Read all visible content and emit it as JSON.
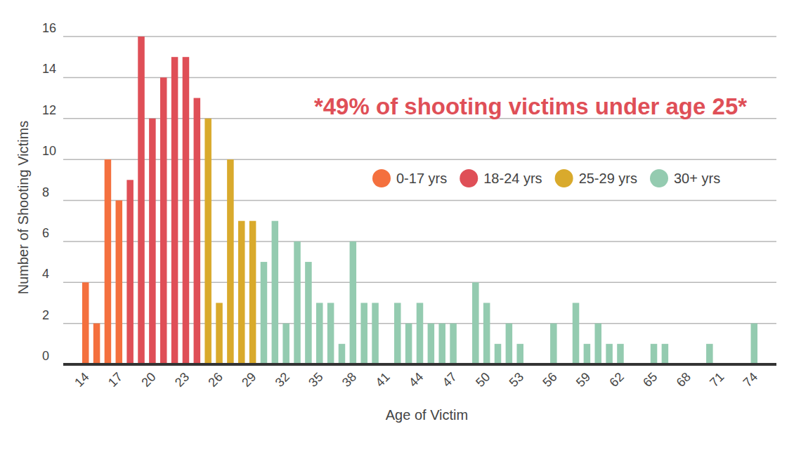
{
  "chart_data": {
    "type": "bar",
    "annotation": "*49% of shooting victims under age 25*",
    "x_label": "Age of Victim",
    "y_label": "Number of Shooting Victims",
    "x": [
      14,
      15,
      16,
      17,
      18,
      19,
      20,
      21,
      22,
      23,
      24,
      25,
      26,
      27,
      28,
      29,
      30,
      31,
      32,
      33,
      34,
      35,
      36,
      37,
      38,
      39,
      40,
      41,
      42,
      43,
      44,
      45,
      46,
      47,
      48,
      49,
      50,
      51,
      52,
      53,
      54,
      55,
      56,
      57,
      58,
      59,
      60,
      61,
      62,
      63,
      64,
      65,
      66,
      67,
      68,
      69,
      70,
      71,
      72,
      73,
      74
    ],
    "series": [
      {
        "name": "0-17 yrs",
        "color": "#f4703e",
        "values": [
          4,
          2,
          10,
          8,
          null,
          null,
          null,
          null,
          null,
          null,
          null,
          null,
          null,
          null,
          null,
          null,
          null,
          null,
          null,
          null,
          null,
          null,
          null,
          null,
          null,
          null,
          null,
          null,
          null,
          null,
          null,
          null,
          null,
          null,
          null,
          null,
          null,
          null,
          null,
          null,
          null,
          null,
          null,
          null,
          null,
          null,
          null,
          null,
          null,
          null,
          null,
          null,
          null,
          null,
          null,
          null,
          null,
          null,
          null,
          null,
          null
        ]
      },
      {
        "name": "18-24 yrs",
        "color": "#df4f57",
        "values": [
          null,
          null,
          null,
          null,
          9,
          16,
          12,
          14,
          15,
          15,
          13,
          null,
          null,
          null,
          null,
          null,
          null,
          null,
          null,
          null,
          null,
          null,
          null,
          null,
          null,
          null,
          null,
          null,
          null,
          null,
          null,
          null,
          null,
          null,
          null,
          null,
          null,
          null,
          null,
          null,
          null,
          null,
          null,
          null,
          null,
          null,
          null,
          null,
          null,
          null,
          null,
          null,
          null,
          null,
          null,
          null,
          null,
          null,
          null,
          null,
          null
        ]
      },
      {
        "name": "25-29 yrs",
        "color": "#d9aa2c",
        "values": [
          null,
          null,
          null,
          null,
          null,
          null,
          null,
          null,
          null,
          null,
          null,
          12,
          3,
          10,
          7,
          7,
          null,
          null,
          null,
          null,
          null,
          null,
          null,
          null,
          null,
          null,
          null,
          null,
          null,
          null,
          null,
          null,
          null,
          null,
          null,
          null,
          null,
          null,
          null,
          null,
          null,
          null,
          null,
          null,
          null,
          null,
          null,
          null,
          null,
          null,
          null,
          null,
          null,
          null,
          null,
          null,
          null,
          null,
          null,
          null,
          null
        ]
      },
      {
        "name": "30+ yrs",
        "color": "#94cbb0",
        "values": [
          null,
          null,
          null,
          null,
          null,
          null,
          null,
          null,
          null,
          null,
          null,
          null,
          null,
          null,
          null,
          null,
          5,
          7,
          2,
          6,
          5,
          3,
          3,
          1,
          6,
          3,
          3,
          0,
          3,
          2,
          3,
          2,
          2,
          2,
          0,
          4,
          3,
          1,
          2,
          1,
          0,
          0,
          2,
          0,
          3,
          1,
          2,
          1,
          1,
          0,
          0,
          1,
          1,
          0,
          0,
          0,
          1,
          0,
          0,
          0,
          2
        ]
      }
    ],
    "xlim": [
      12,
      76
    ],
    "xticks": [
      14,
      17,
      20,
      23,
      26,
      29,
      32,
      35,
      38,
      41,
      44,
      47,
      50,
      53,
      56,
      59,
      62,
      65,
      68,
      71,
      74
    ],
    "ylim": [
      0,
      16
    ],
    "yticks": [
      0,
      2,
      4,
      6,
      8,
      10,
      12,
      14,
      16
    ],
    "grid": true,
    "legend": "right"
  }
}
